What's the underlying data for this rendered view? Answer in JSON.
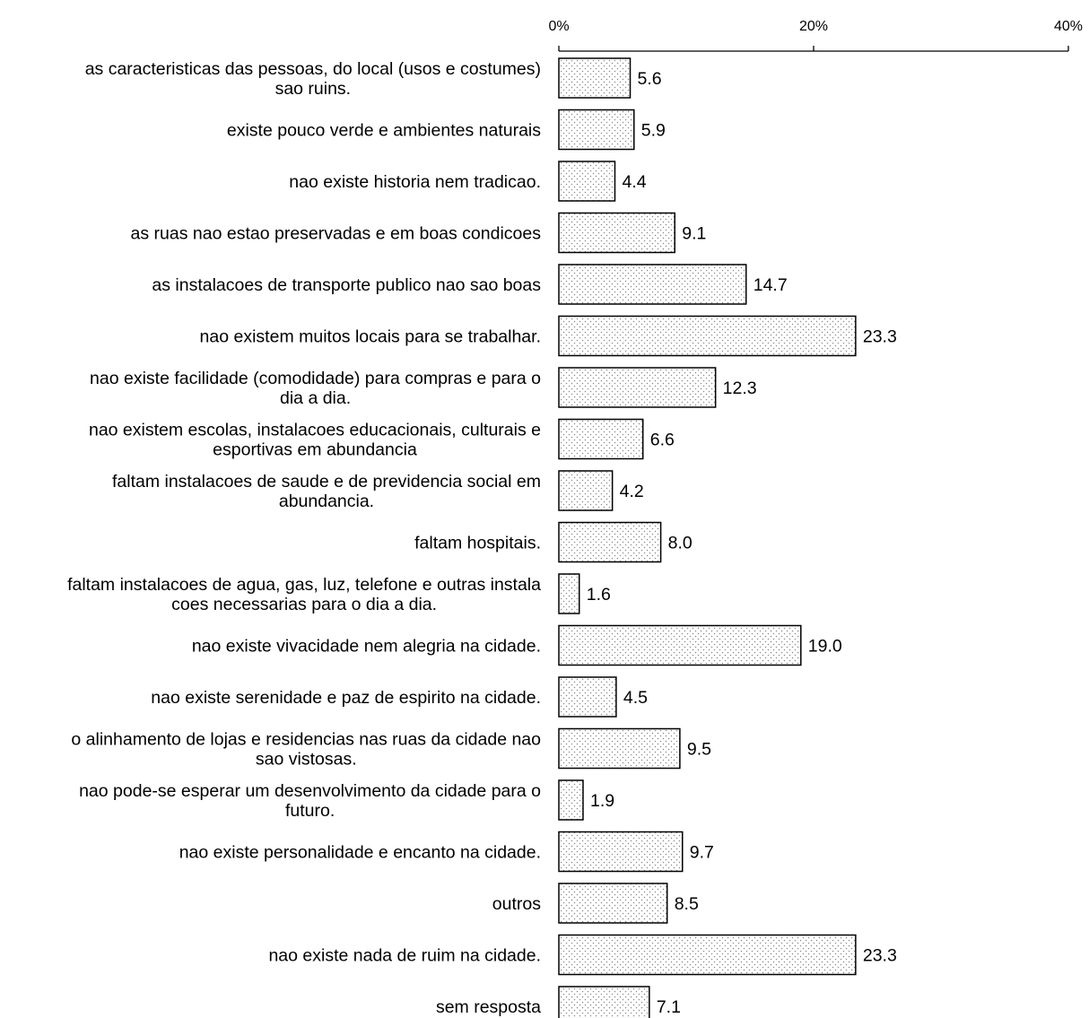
{
  "chart_data": {
    "type": "bar",
    "orientation": "horizontal",
    "categories": [
      [
        "as caracteristicas das pessoas, do local  (usos e costumes)",
        "sao ruins."
      ],
      [
        "existe pouco verde e ambientes naturais"
      ],
      [
        "nao existe historia nem tradicao."
      ],
      [
        "as ruas nao estao preservadas e em boas condicoes"
      ],
      [
        "as instalacoes de transporte publico nao sao boas"
      ],
      [
        "nao existem muitos locais para se trabalhar."
      ],
      [
        "nao existe facilidade  (comodidade)  para compras e para o",
        "dia a dia."
      ],
      [
        "nao existem escolas, instalacoes educacionais, culturais e",
        "esportivas em abundancia"
      ],
      [
        "faltam instalacoes de saude e de previdencia social em",
        "abundancia."
      ],
      [
        "faltam hospitais."
      ],
      [
        "faltam instalacoes de agua, gas, luz, telefone e outras instala",
        "coes necessarias para o dia a dia."
      ],
      [
        "nao existe vivacidade nem alegria na cidade."
      ],
      [
        "nao existe serenidade e paz de espirito na cidade."
      ],
      [
        "o alinhamento de lojas e residencias nas ruas da cidade nao",
        "sao vistosas."
      ],
      [
        "nao pode-se esperar um desenvolvimento da cidade para o",
        "futuro."
      ],
      [
        "nao existe personalidade e encanto na cidade."
      ],
      [
        "outros"
      ],
      [
        "nao existe nada de ruim na cidade."
      ],
      [
        "sem resposta"
      ]
    ],
    "values": [
      5.6,
      5.9,
      4.4,
      9.1,
      14.7,
      23.3,
      12.3,
      6.6,
      4.2,
      8.0,
      1.6,
      19.0,
      4.5,
      9.5,
      1.9,
      9.7,
      8.5,
      23.3,
      7.1
    ],
    "value_labels": [
      "5.6",
      "5.9",
      "4.4",
      "9.1",
      "14.7",
      "23.3",
      "12.3",
      "6.6",
      "4.2",
      "8.0",
      "1.6",
      "19.0",
      "4.5",
      "9.5",
      "1.9",
      "9.7",
      "8.5",
      "23.3",
      "7.1"
    ],
    "x_ticks": [
      "0%",
      "20%",
      "40%"
    ],
    "x_tick_values": [
      0,
      20,
      40
    ],
    "xlim": [
      0,
      40
    ],
    "axis_position": "top",
    "bar_fill": "dotted-pattern",
    "bar_color": "#000000",
    "background": "#ffffff",
    "grid": false,
    "legend": false,
    "title": "",
    "xlabel": "",
    "ylabel": ""
  }
}
